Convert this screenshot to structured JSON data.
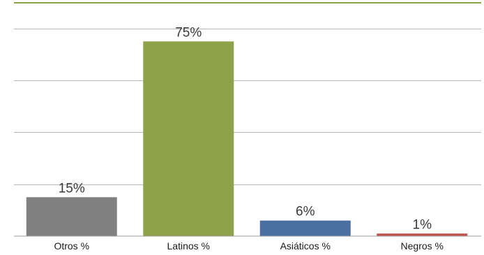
{
  "chart_data": {
    "type": "bar",
    "categories": [
      "Otros %",
      "Latinos %",
      "Asiáticos %",
      "Negros %"
    ],
    "values": [
      15,
      75,
      6,
      1
    ],
    "data_labels": [
      "15%",
      "75%",
      "6%",
      "1%"
    ],
    "title": "",
    "xlabel": "",
    "ylabel": "",
    "ylim": [
      0,
      80
    ],
    "grid": true,
    "legend": "none",
    "colors": [
      "#808080",
      "#8da34a",
      "#4a6fa0",
      "#c0504d"
    ],
    "accent_rule_color": "#8da34a"
  }
}
